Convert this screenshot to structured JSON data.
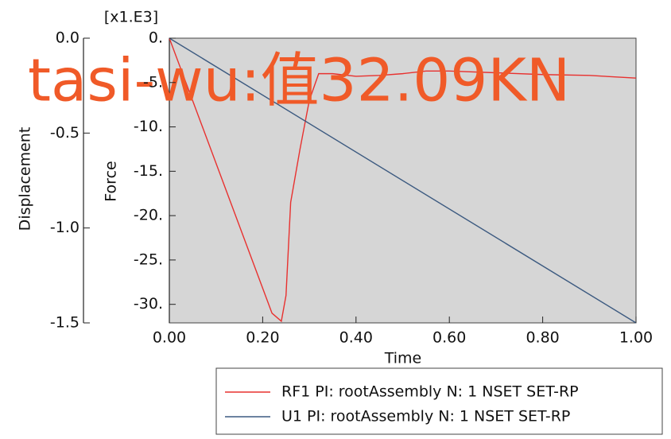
{
  "chart_data": {
    "type": "line",
    "annotation": "tasi-wu:值32.09KN",
    "multiplier": "[x1.E3]",
    "xlabel": "Time",
    "ylabel": "Force",
    "y2label": "Displacement",
    "xlim": [
      0,
      1
    ],
    "xticks": [
      {
        "value": 0,
        "label": "0.00"
      },
      {
        "value": 0.2,
        "label": "0.20"
      },
      {
        "value": 0.4,
        "label": "0.40"
      },
      {
        "value": 0.6,
        "label": "0.60"
      },
      {
        "value": 0.8,
        "label": "0.80"
      },
      {
        "value": 1,
        "label": "1.00"
      }
    ],
    "ylim": [
      -32.09,
      0
    ],
    "yticks": [
      {
        "value": 0,
        "label": "0."
      },
      {
        "value": -5,
        "label": "-5."
      },
      {
        "value": -10,
        "label": "-10."
      },
      {
        "value": -15,
        "label": "-15."
      },
      {
        "value": -20,
        "label": "-20."
      },
      {
        "value": -25,
        "label": "-25."
      },
      {
        "value": -30,
        "label": "-30."
      }
    ],
    "y2lim": [
      -1.5,
      0
    ],
    "y2ticks": [
      {
        "value": 0,
        "label": "0.0"
      },
      -0.5,
      {
        "value": -1,
        "label": "-1.0"
      },
      -1.5
    ],
    "series": [
      {
        "name": "RF1 PI: rootAssembly N: 1 NSET SET-RP",
        "color": "#e8312f",
        "axis": "y",
        "x": [
          0,
          0.22,
          0.24,
          0.25,
          0.26,
          0.28,
          0.3,
          0.32,
          0.35,
          0.4,
          0.45,
          0.5,
          0.55,
          0.6,
          0.7,
          0.8,
          0.9,
          1
        ],
        "values": [
          0,
          -31,
          -31.9,
          -29,
          -18.5,
          -12.5,
          -7,
          -4,
          -4,
          -4.3,
          -4.2,
          -4,
          -3.7,
          -3.7,
          -3.9,
          -4.1,
          -4.2,
          -4.5
        ]
      },
      {
        "name": "U1 PI: rootAssembly N: 1 NSET SET-RP",
        "color": "#3c5a80",
        "axis": "y2",
        "x": [
          0,
          1
        ],
        "values": [
          0,
          -1.5
        ]
      }
    ]
  }
}
